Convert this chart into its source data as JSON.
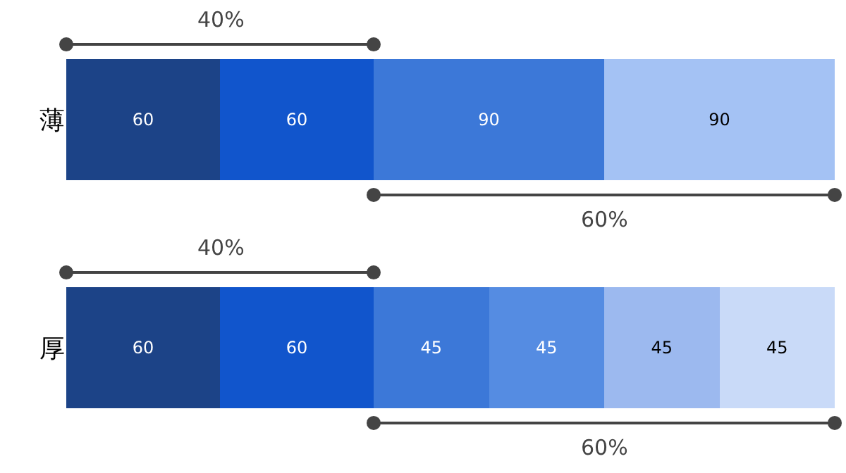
{
  "chart_data": {
    "type": "bar",
    "orientation": "horizontal",
    "stacked": true,
    "categories": [
      "薄",
      "厚"
    ],
    "series": [
      {
        "colors": [
          "#1c4387",
          "#1c4387"
        ],
        "values": [
          60,
          60
        ]
      },
      {
        "colors": [
          "#1155cc",
          "#1155cc"
        ],
        "values": [
          60,
          60
        ]
      },
      {
        "colors": [
          "#3c78d8",
          "#3c78d8"
        ],
        "values": [
          90,
          45
        ]
      },
      {
        "colors": [
          "#a4c2f4",
          "#558ce2"
        ],
        "values": [
          90,
          45
        ]
      },
      {
        "colors": [
          "#9cb9ef",
          "#9cb9ef"
        ],
        "values": [
          null,
          45
        ]
      },
      {
        "colors": [
          "#c9daf8",
          "#c9daf8"
        ],
        "values": [
          null,
          45
        ]
      }
    ],
    "xlim": [
      0,
      300
    ],
    "tick_labels": "y",
    "data_labels": true,
    "annotations": [
      "40%",
      "60%",
      "40%",
      "60%"
    ]
  }
}
